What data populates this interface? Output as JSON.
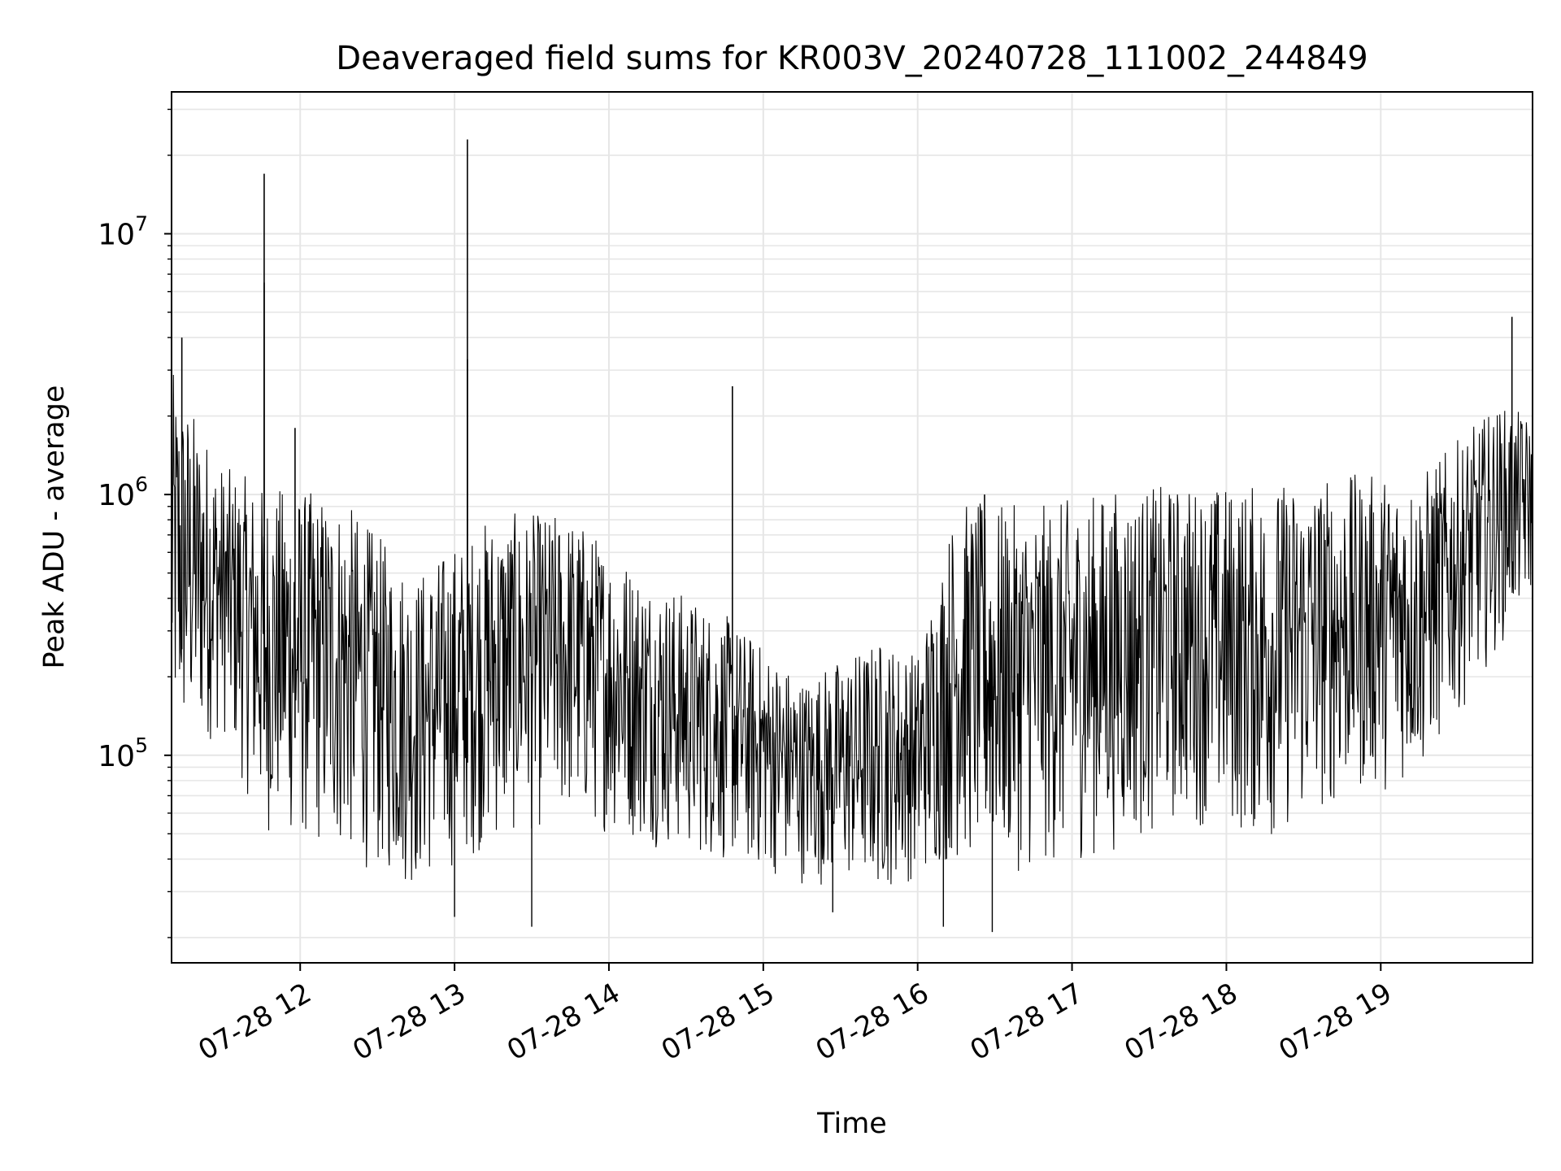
{
  "chart_data": {
    "type": "line",
    "title": "Deaveraged field sums for KR003V_20240728_111002_244849",
    "xlabel": "Time",
    "ylabel": "Peak ADU - average",
    "y_scale": "log",
    "x_start": "2024-07-28 11:10",
    "x_end": "2024-07-28 19:59",
    "xlim": [
      "2024-07-28 11:10",
      "2024-07-28 19:59"
    ],
    "ylim": [
      16000,
      35000000
    ],
    "x_ticks": [
      "2024-07-28 12:00",
      "2024-07-28 13:00",
      "2024-07-28 14:00",
      "2024-07-28 15:00",
      "2024-07-28 16:00",
      "2024-07-28 17:00",
      "2024-07-28 18:00",
      "2024-07-28 19:00"
    ],
    "x_tick_labels": [
      "07-28 12",
      "07-28 13",
      "07-28 14",
      "07-28 15",
      "07-28 16",
      "07-28 17",
      "07-28 18",
      "07-28 19"
    ],
    "y_ticks": [
      {
        "value": 100000,
        "base": "10",
        "exp": "5"
      },
      {
        "value": 1000000,
        "base": "10",
        "exp": "6"
      },
      {
        "value": 10000000,
        "base": "10",
        "exp": "7"
      }
    ],
    "grid": true,
    "line_color": "#000000",
    "grid_color": "#e6e6e6",
    "envelope": [
      {
        "t": "2024-07-28 11:10",
        "low": 90000,
        "high": 3000000
      },
      {
        "t": "2024-07-28 11:30",
        "low": 120000,
        "high": 1300000
      },
      {
        "t": "2024-07-28 11:45",
        "low": 50000,
        "high": 1100000
      },
      {
        "t": "2024-07-28 12:15",
        "low": 40000,
        "high": 1000000
      },
      {
        "t": "2024-07-28 12:45",
        "low": 30000,
        "high": 500000
      },
      {
        "t": "2024-07-28 13:15",
        "low": 45000,
        "high": 850000
      },
      {
        "t": "2024-07-28 13:45",
        "low": 55000,
        "high": 850000
      },
      {
        "t": "2024-07-28 14:15",
        "low": 45000,
        "high": 500000
      },
      {
        "t": "2024-07-28 14:45",
        "low": 38000,
        "high": 350000
      },
      {
        "t": "2024-07-28 15:15",
        "low": 32000,
        "high": 200000
      },
      {
        "t": "2024-07-28 15:45",
        "low": 30000,
        "high": 280000
      },
      {
        "t": "2024-07-28 16:00",
        "low": 33000,
        "high": 250000
      },
      {
        "t": "2024-07-28 16:15",
        "low": 38000,
        "high": 950000
      },
      {
        "t": "2024-07-28 16:45",
        "low": 35000,
        "high": 900000
      },
      {
        "t": "2024-07-28 17:15",
        "low": 42000,
        "high": 1050000
      },
      {
        "t": "2024-07-28 17:45",
        "low": 55000,
        "high": 1100000
      },
      {
        "t": "2024-07-28 18:15",
        "low": 45000,
        "high": 1100000
      },
      {
        "t": "2024-07-28 18:45",
        "low": 65000,
        "high": 1200000
      },
      {
        "t": "2024-07-28 19:15",
        "low": 80000,
        "high": 1200000
      },
      {
        "t": "2024-07-28 19:45",
        "low": 250000,
        "high": 2200000
      },
      {
        "t": "2024-07-28 19:59",
        "low": 400000,
        "high": 2000000
      }
    ],
    "spikes": [
      {
        "t": "2024-07-28 11:46",
        "value": 17000000
      },
      {
        "t": "2024-07-28 11:46",
        "value": 6500000
      },
      {
        "t": "2024-07-28 11:58",
        "value": 1800000
      },
      {
        "t": "2024-07-28 13:05",
        "value": 23000000
      },
      {
        "t": "2024-07-28 13:05",
        "value": 3300000
      },
      {
        "t": "2024-07-28 14:48",
        "value": 2600000
      },
      {
        "t": "2024-07-28 19:51",
        "value": 4800000
      },
      {
        "t": "2024-07-28 11:14",
        "value": 4000000
      },
      {
        "t": "2024-07-28 16:26",
        "value": 1000000
      }
    ],
    "dips": [
      {
        "t": "2024-07-28 13:30",
        "value": 22000
      },
      {
        "t": "2024-07-28 16:10",
        "value": 22000
      },
      {
        "t": "2024-07-28 16:29",
        "value": 21000
      },
      {
        "t": "2024-07-28 15:27",
        "value": 25000
      },
      {
        "t": "2024-07-28 13:00",
        "value": 24000
      }
    ]
  }
}
